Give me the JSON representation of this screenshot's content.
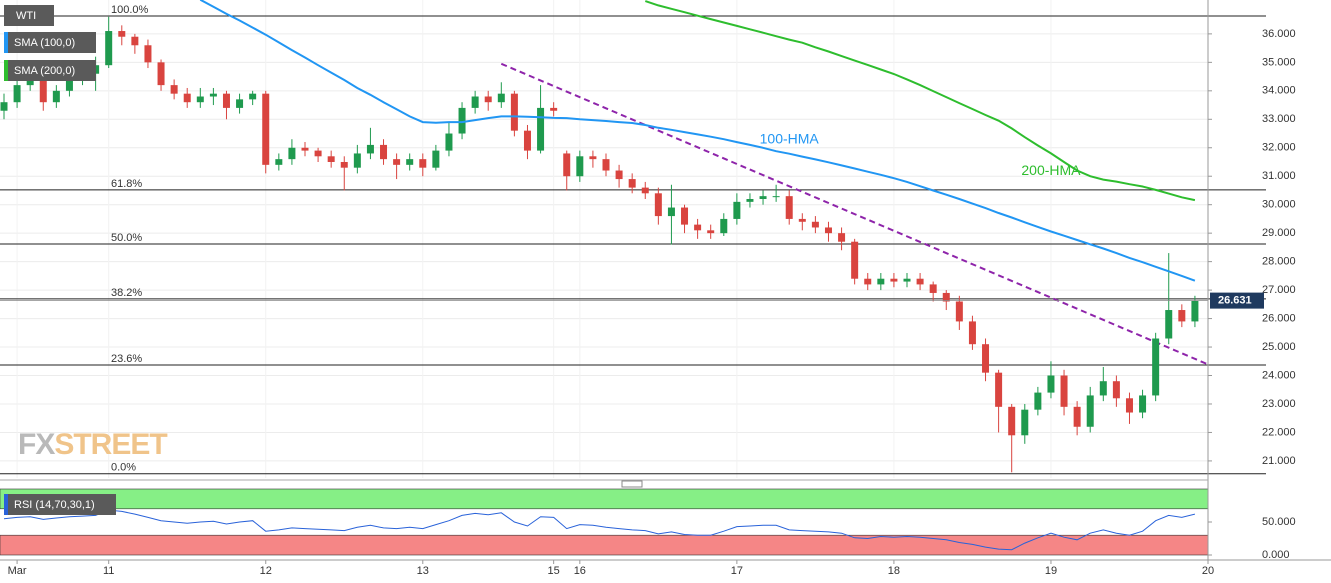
{
  "chart_data": {
    "type": "candlestick",
    "title": "WTI",
    "categories": [
      null,
      "Mar",
      null,
      null,
      null,
      null,
      null,
      null,
      "11",
      null,
      null,
      null,
      null,
      null,
      null,
      null,
      null,
      null,
      null,
      null,
      "12",
      null,
      null,
      null,
      null,
      null,
      null,
      null,
      null,
      null,
      null,
      null,
      "13",
      null,
      null,
      null,
      null,
      null,
      null,
      null,
      null,
      null,
      "15",
      null,
      "16",
      null,
      null,
      null,
      null,
      null,
      null,
      null,
      null,
      null,
      null,
      null,
      "17",
      null,
      null,
      null,
      null,
      null,
      null,
      null,
      null,
      null,
      null,
      null,
      "18",
      null,
      null,
      null,
      null,
      null,
      null,
      null,
      null,
      null,
      null,
      null,
      "19",
      null,
      null,
      null,
      null,
      null,
      null,
      null,
      null,
      null,
      null,
      null,
      "20"
    ],
    "series": [
      {
        "type": "candlestick",
        "name": "WTI",
        "color_up": "#1f9a4e",
        "color_down": "#d9443f",
        "open": [
          33.3,
          33.6,
          34.2,
          34.5,
          33.6,
          34.0,
          34.4,
          34.6,
          34.9,
          36.1,
          35.9,
          35.6,
          35.0,
          34.2,
          33.9,
          33.6,
          33.8,
          33.9,
          33.4,
          33.7,
          33.9,
          31.4,
          31.6,
          32.0,
          31.9,
          31.7,
          31.5,
          31.3,
          31.8,
          32.1,
          31.6,
          31.4,
          31.6,
          31.3,
          31.9,
          32.5,
          33.4,
          33.8,
          33.6,
          33.9,
          32.6,
          31.9,
          33.4,
          31.8,
          31.0,
          31.7,
          31.6,
          31.2,
          30.9,
          30.6,
          30.4,
          29.6,
          29.9,
          29.3,
          29.1,
          29.0,
          29.5,
          30.1,
          30.2,
          30.3,
          30.3,
          29.5,
          29.4,
          29.2,
          29.0,
          28.7,
          27.4,
          27.2,
          27.4,
          27.3,
          27.4,
          27.2,
          26.9,
          26.6,
          25.9,
          25.1,
          24.1,
          22.9,
          21.9,
          22.8,
          23.4,
          24.0,
          22.9,
          22.2,
          23.3,
          23.8,
          23.2,
          22.7,
          23.3,
          25.3,
          26.3,
          25.9,
          null
        ],
        "high": [
          33.9,
          34.4,
          34.8,
          34.7,
          34.2,
          34.6,
          34.9,
          35.2,
          36.6,
          36.3,
          36.0,
          35.8,
          35.1,
          34.4,
          34.1,
          34.1,
          34.1,
          34.0,
          33.9,
          34.0,
          34.0,
          31.8,
          32.3,
          32.2,
          32.0,
          31.9,
          31.7,
          32.1,
          32.7,
          32.3,
          31.8,
          31.8,
          31.8,
          32.1,
          32.9,
          33.6,
          34.0,
          34.0,
          34.3,
          34.0,
          32.8,
          34.2,
          33.6,
          31.9,
          31.9,
          31.9,
          31.8,
          31.4,
          31.1,
          30.8,
          30.6,
          30.7,
          30.0,
          29.5,
          29.3,
          29.7,
          30.4,
          30.4,
          30.5,
          30.7,
          30.5,
          29.7,
          29.6,
          29.4,
          29.2,
          28.8,
          27.6,
          27.6,
          27.6,
          27.6,
          27.6,
          27.3,
          27.0,
          26.8,
          26.1,
          25.3,
          24.2,
          23.0,
          23.0,
          23.6,
          24.5,
          24.2,
          23.1,
          23.6,
          24.3,
          24.0,
          23.4,
          23.5,
          25.5,
          28.3,
          26.5,
          26.8,
          null
        ],
        "low": [
          33.0,
          33.4,
          34.0,
          33.3,
          33.4,
          33.8,
          34.2,
          34.0,
          34.8,
          35.6,
          35.3,
          34.8,
          34.0,
          33.7,
          33.4,
          33.4,
          33.5,
          33.0,
          33.2,
          33.5,
          31.1,
          31.2,
          31.4,
          31.7,
          31.5,
          31.3,
          30.5,
          31.1,
          31.6,
          31.4,
          30.9,
          31.2,
          31.0,
          31.2,
          31.7,
          32.3,
          33.2,
          33.3,
          33.4,
          32.4,
          31.6,
          31.8,
          33.1,
          30.5,
          30.8,
          31.3,
          31.0,
          30.6,
          30.4,
          30.2,
          29.3,
          28.6,
          29.0,
          28.8,
          28.8,
          28.9,
          29.3,
          29.9,
          30.0,
          30.1,
          29.3,
          29.1,
          29.0,
          28.7,
          28.4,
          27.2,
          27.0,
          27.0,
          27.1,
          27.1,
          27.0,
          26.6,
          26.3,
          25.6,
          24.9,
          23.8,
          22.0,
          20.6,
          21.6,
          22.6,
          23.2,
          22.6,
          21.9,
          22.0,
          23.1,
          22.9,
          22.3,
          22.5,
          23.1,
          25.1,
          25.7,
          25.7,
          null
        ],
        "close": [
          33.6,
          34.2,
          34.5,
          33.6,
          34.0,
          34.4,
          34.6,
          34.9,
          36.1,
          35.9,
          35.6,
          35.0,
          34.2,
          33.9,
          33.6,
          33.8,
          33.9,
          33.4,
          33.7,
          33.9,
          31.4,
          31.6,
          32.0,
          31.9,
          31.7,
          31.5,
          31.3,
          31.8,
          32.1,
          31.6,
          31.4,
          31.6,
          31.3,
          31.9,
          32.5,
          33.4,
          33.8,
          33.6,
          33.9,
          32.6,
          31.9,
          33.4,
          33.3,
          31.0,
          31.7,
          31.6,
          31.2,
          30.9,
          30.6,
          30.4,
          29.6,
          29.9,
          29.3,
          29.1,
          29.0,
          29.5,
          30.1,
          30.2,
          30.3,
          30.3,
          29.5,
          29.4,
          29.2,
          29.0,
          28.7,
          27.4,
          27.2,
          27.4,
          27.3,
          27.4,
          27.2,
          26.9,
          26.6,
          25.9,
          25.1,
          24.1,
          22.9,
          21.9,
          22.8,
          23.4,
          24.0,
          22.9,
          22.2,
          23.3,
          23.8,
          23.2,
          22.7,
          23.3,
          25.3,
          26.3,
          25.9,
          26.631,
          null
        ]
      },
      {
        "type": "line",
        "name": "SMA (100,0)",
        "annotation": "100-HMA",
        "color": "#2196f3",
        "values": [
          null,
          null,
          null,
          null,
          null,
          null,
          null,
          null,
          null,
          null,
          null,
          null,
          null,
          null,
          null,
          37.2,
          36.95,
          36.7,
          36.47,
          36.22,
          35.97,
          35.7,
          35.43,
          35.17,
          34.9,
          34.64,
          34.38,
          34.1,
          33.86,
          33.6,
          33.35,
          33.1,
          32.9,
          32.88,
          32.9,
          32.9,
          32.97,
          33.04,
          33.1,
          33.1,
          33.09,
          33.07,
          33.05,
          33.04,
          33.0,
          32.97,
          32.94,
          32.9,
          32.87,
          32.8,
          32.7,
          32.63,
          32.55,
          32.47,
          32.39,
          32.3,
          32.2,
          32.1,
          32.0,
          31.88,
          31.79,
          31.69,
          31.59,
          31.49,
          31.38,
          31.27,
          31.16,
          31.05,
          30.93,
          30.8,
          30.65,
          30.5,
          30.35,
          30.2,
          30.04,
          29.88,
          29.71,
          29.55,
          29.38,
          29.22,
          29.06,
          28.91,
          28.76,
          28.61,
          28.46,
          28.3,
          28.13,
          27.98,
          27.82,
          27.66,
          27.5,
          27.33,
          null
        ]
      },
      {
        "type": "line",
        "name": "SMA (200,0)",
        "annotation": "200-HMA",
        "color": "#2ebd2e",
        "values": [
          null,
          null,
          null,
          null,
          null,
          null,
          null,
          null,
          null,
          null,
          null,
          null,
          null,
          null,
          null,
          null,
          null,
          null,
          null,
          null,
          null,
          null,
          null,
          null,
          null,
          null,
          null,
          null,
          null,
          null,
          null,
          null,
          null,
          null,
          null,
          null,
          null,
          null,
          null,
          null,
          null,
          null,
          null,
          null,
          null,
          null,
          null,
          null,
          null,
          37.15,
          37.0,
          36.88,
          36.76,
          36.64,
          36.52,
          36.4,
          36.28,
          36.16,
          36.04,
          35.92,
          35.8,
          35.69,
          35.53,
          35.38,
          35.22,
          35.06,
          34.91,
          34.75,
          34.59,
          34.4,
          34.2,
          33.99,
          33.78,
          33.57,
          33.36,
          33.15,
          32.95,
          32.68,
          32.37,
          32.08,
          31.8,
          31.5,
          31.2,
          31.0,
          30.88,
          30.81,
          30.72,
          30.64,
          30.52,
          30.39,
          30.26,
          30.16,
          null
        ]
      }
    ],
    "ylim": [
      20.4,
      37.19
    ],
    "yticks": [
      {
        "value": 21,
        "label": "21.000"
      },
      {
        "value": 22,
        "label": "22.000"
      },
      {
        "value": 23,
        "label": "23.000"
      },
      {
        "value": 24,
        "label": "24.000"
      },
      {
        "value": 25,
        "label": "25.000"
      },
      {
        "value": 26,
        "label": "26.000"
      },
      {
        "value": 27,
        "label": "27.000"
      },
      {
        "value": 28,
        "label": "28.000"
      },
      {
        "value": 29,
        "label": "29.000"
      },
      {
        "value": 30,
        "label": "30.000"
      },
      {
        "value": 31,
        "label": "31.000"
      },
      {
        "value": 32,
        "label": "32.000"
      },
      {
        "value": 33,
        "label": "33.000"
      },
      {
        "value": 34,
        "label": "34.000"
      },
      {
        "value": 35,
        "label": "35.000"
      },
      {
        "value": 36,
        "label": "36.000"
      }
    ],
    "grid": true,
    "fib_levels": [
      {
        "label": "100.0%",
        "value": 36.63
      },
      {
        "label": "61.8%",
        "value": 30.52
      },
      {
        "label": "50.0%",
        "value": 28.62
      },
      {
        "label": "38.2%",
        "value": 26.69
      },
      {
        "label": "23.6%",
        "value": 24.37
      },
      {
        "label": "0.0%",
        "value": 20.55
      }
    ],
    "trendline": {
      "color": "#8e24aa",
      "x": [
        38,
        92
      ],
      "values": [
        34.95,
        24.39
      ]
    },
    "rsi": {
      "type": "line",
      "name": "RSI (14,70,30,1)",
      "color": "#2962d9",
      "values": [
        55,
        57,
        58,
        54,
        56,
        58,
        59,
        60,
        68,
        66,
        62,
        57,
        52,
        50,
        48,
        50,
        51,
        47,
        50,
        52,
        36,
        38,
        41,
        40,
        39,
        38,
        37,
        42,
        45,
        41,
        40,
        42,
        40,
        46,
        52,
        60,
        63,
        61,
        64,
        50,
        44,
        58,
        57,
        40,
        46,
        45,
        42,
        40,
        38,
        37,
        32,
        35,
        31,
        30,
        30,
        36,
        43,
        44,
        45,
        45,
        38,
        37,
        36,
        35,
        33,
        26,
        25,
        28,
        27,
        28,
        27,
        25,
        23,
        19,
        16,
        12,
        9,
        8,
        18,
        26,
        33,
        27,
        23,
        33,
        38,
        33,
        30,
        36,
        52,
        60,
        57,
        62,
        null
      ],
      "ylim": [
        0,
        100
      ],
      "yticks": [
        {
          "value": 0,
          "label": "0.000"
        },
        {
          "value": 50,
          "label": "50.000"
        }
      ],
      "bands": [
        {
          "from": 70,
          "to": 100,
          "color": "#86ef86"
        },
        {
          "from": 0,
          "to": 30,
          "color": "#f58686"
        }
      ]
    },
    "watermark": {
      "prefix": "FX",
      "suffix": "STREET"
    }
  }
}
